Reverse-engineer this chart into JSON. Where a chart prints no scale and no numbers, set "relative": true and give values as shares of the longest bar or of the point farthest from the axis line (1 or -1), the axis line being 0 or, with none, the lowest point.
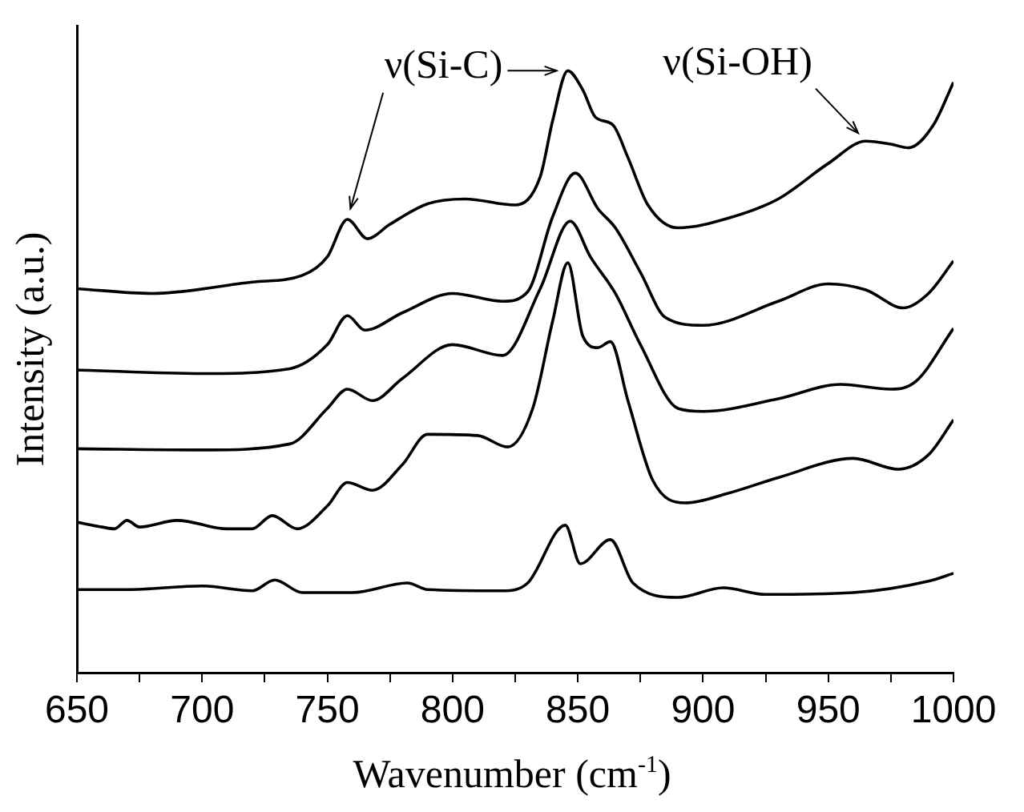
{
  "chart_data": {
    "type": "line",
    "xlabel": "Wavenumber (cm$^{-1}$)",
    "ylabel": "Intensity (a.u.)",
    "relative": true,
    "xlim": [
      650,
      1000
    ],
    "xticks": [
      650,
      {
        "value": 675,
        "label": null
      },
      700,
      {
        "value": 725,
        "label": null
      },
      750,
      {
        "value": 775,
        "label": null
      },
      800,
      {
        "value": 825,
        "label": null
      },
      850,
      {
        "value": 875,
        "label": null
      },
      900,
      {
        "value": 925,
        "label": null
      },
      950,
      {
        "value": 975,
        "label": null
      },
      1000
    ],
    "grid": false,
    "legend": false,
    "marker": "none",
    "line_style": "solid",
    "annotations": [
      {
        "text": "ν(Si-C)",
        "x": 758,
        "y": 0.753
      },
      {
        "text": "ν(Si-OH)",
        "x": 965,
        "y": 0.883
      }
    ],
    "series": [
      {
        "color": "#000000",
        "x": [
          650,
          680,
          720,
          740,
          750,
          758,
          766,
          775,
          790,
          805,
          825,
          835,
          840,
          846,
          852,
          857,
          864,
          870,
          878,
          890,
          910,
          930,
          950,
          965,
          975,
          982,
          992,
          1000
        ],
        "values": [
          0.638,
          0.63,
          0.649,
          0.66,
          0.691,
          0.753,
          0.721,
          0.745,
          0.779,
          0.787,
          0.777,
          0.824,
          0.918,
          1.0,
          0.968,
          0.923,
          0.91,
          0.856,
          0.777,
          0.739,
          0.755,
          0.787,
          0.846,
          0.883,
          0.878,
          0.872,
          0.91,
          0.981
        ]
      },
      {
        "color": "#000000",
        "x": [
          650,
          700,
          735,
          750,
          758,
          765,
          780,
          800,
          820,
          830,
          840,
          849,
          858,
          865,
          875,
          885,
          900,
          930,
          950,
          965,
          980,
          990,
          1000
        ],
        "values": [
          0.503,
          0.497,
          0.505,
          0.545,
          0.593,
          0.569,
          0.598,
          0.63,
          0.617,
          0.633,
          0.758,
          0.83,
          0.771,
          0.739,
          0.665,
          0.59,
          0.577,
          0.617,
          0.646,
          0.636,
          0.606,
          0.63,
          0.684
        ]
      },
      {
        "color": "#000000",
        "x": [
          650,
          700,
          735,
          750,
          758,
          768,
          780,
          800,
          820,
          835,
          847,
          855,
          865,
          875,
          890,
          900,
          930,
          955,
          975,
          985,
          1000
        ],
        "values": [
          0.372,
          0.37,
          0.38,
          0.439,
          0.471,
          0.452,
          0.489,
          0.545,
          0.527,
          0.638,
          0.75,
          0.691,
          0.63,
          0.545,
          0.439,
          0.434,
          0.455,
          0.479,
          0.471,
          0.484,
          0.572
        ]
      },
      {
        "color": "#000000",
        "x": [
          650,
          660,
          665,
          670,
          675,
          690,
          710,
          720,
          728,
          738,
          750,
          758,
          768,
          780,
          790,
          810,
          822,
          832,
          840,
          846,
          852,
          858,
          863,
          870,
          880,
          893,
          910,
          930,
          960,
          978,
          990,
          1000
        ],
        "values": [
          0.25,
          0.242,
          0.239,
          0.253,
          0.242,
          0.253,
          0.239,
          0.239,
          0.261,
          0.239,
          0.277,
          0.316,
          0.303,
          0.346,
          0.396,
          0.394,
          0.375,
          0.439,
          0.585,
          0.681,
          0.559,
          0.54,
          0.55,
          0.452,
          0.319,
          0.282,
          0.298,
          0.324,
          0.356,
          0.338,
          0.362,
          0.42
        ]
      },
      {
        "color": "#000000",
        "x": [
          650,
          670,
          700,
          720,
          729,
          740,
          760,
          782,
          790,
          820,
          830,
          845,
          851,
          863,
          872,
          890,
          908,
          925,
          960,
          990,
          1000
        ],
        "values": [
          0.138,
          0.138,
          0.144,
          0.136,
          0.154,
          0.133,
          0.133,
          0.149,
          0.138,
          0.136,
          0.149,
          0.245,
          0.181,
          0.221,
          0.149,
          0.125,
          0.141,
          0.13,
          0.133,
          0.152,
          0.165
        ]
      }
    ]
  }
}
